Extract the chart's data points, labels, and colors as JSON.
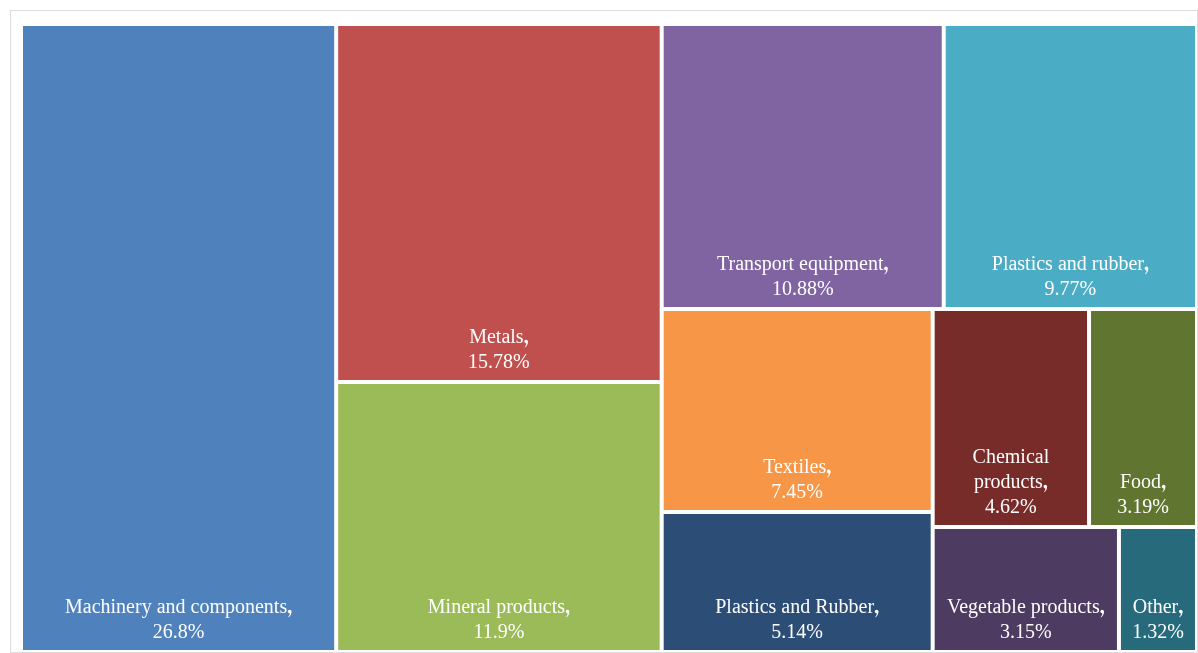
{
  "chart_data": {
    "type": "other",
    "categories": [
      "Machinery and components",
      "Metals",
      "Mineral products",
      "Transport equipment",
      "Plastics and rubber",
      "Textiles",
      "Plastics and Rubber",
      "Chemical products",
      "Food",
      "Vegetable products",
      "Other"
    ],
    "data_labels": true,
    "values": [
      26.8,
      15.78,
      11.9,
      10.88,
      9.77,
      7.45,
      5.14,
      4.62,
      3.19,
      3.15,
      1.32
    ],
    "value_labels": [
      "26.8%",
      "15.78%",
      "11.9%",
      "10.88%",
      "9.77%",
      "7.45%",
      "5.14%",
      "4.62%",
      "3.19%",
      "3.15%",
      "1.32%"
    ],
    "colors": [
      "#4f81bd",
      "#c0504d",
      "#9bbb59",
      "#8064a2",
      "#4bacc6",
      "#f79646",
      "#2c4d75",
      "#772c2a",
      "#5f7530",
      "#4d3b62",
      "#276a7c"
    ]
  }
}
